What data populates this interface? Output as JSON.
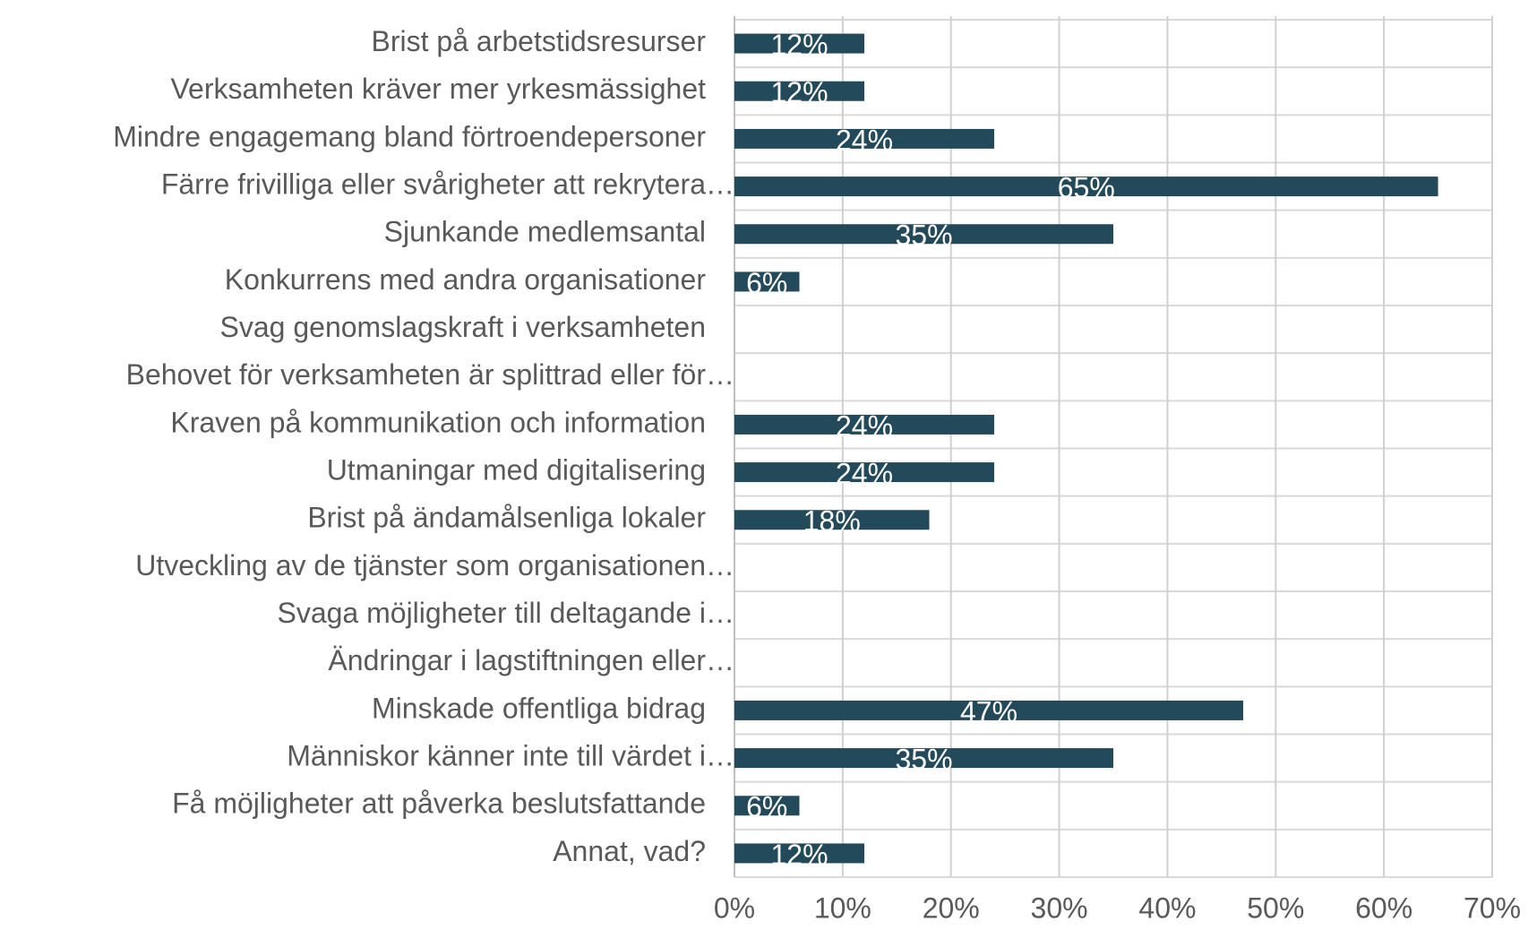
{
  "chart_data": {
    "type": "bar",
    "orientation": "horizontal",
    "categories": [
      "Brist på arbetstidsresurser",
      "Verksamheten kräver mer yrkesmässighet",
      "Mindre engagemang bland förtroendepersoner",
      "Färre frivilliga eller svårigheter att rekrytera…",
      "Sjunkande medlemsantal",
      "Konkurrens med andra organisationer",
      "Svag genomslagskraft i verksamheten",
      "Behovet för verksamheten är splittrad eller för…",
      "Kraven på kommunikation och information",
      "Utmaningar med digitalisering",
      "Brist på ändamålsenliga lokaler",
      "Utveckling av de tjänster som organisationen…",
      "Svaga möjligheter till deltagande i…",
      "Ändringar i lagstiftningen eller…",
      "Minskade offentliga bidrag",
      "Människor känner inte till värdet i…",
      "Få möjligheter att påverka beslutsfattande",
      "Annat, vad?"
    ],
    "values": [
      12,
      12,
      24,
      65,
      35,
      6,
      0,
      0,
      24,
      24,
      18,
      0,
      0,
      0,
      47,
      35,
      6,
      12
    ],
    "value_labels": [
      "12%",
      "12%",
      "24%",
      "65%",
      "35%",
      "6%",
      null,
      null,
      "24%",
      "24%",
      "18%",
      null,
      null,
      null,
      "47%",
      "35%",
      "6%",
      "12%"
    ],
    "color": "#234a5a",
    "xlim": [
      0,
      70
    ],
    "xticks": [
      {
        "value": 0,
        "label": "0%"
      },
      {
        "value": 10,
        "label": "10%"
      },
      {
        "value": 20,
        "label": "20%"
      },
      {
        "value": 30,
        "label": "30%"
      },
      {
        "value": 40,
        "label": "40%"
      },
      {
        "value": 50,
        "label": "50%"
      },
      {
        "value": 60,
        "label": "60%"
      },
      {
        "value": 70,
        "label": "70%"
      }
    ],
    "grid": true
  }
}
